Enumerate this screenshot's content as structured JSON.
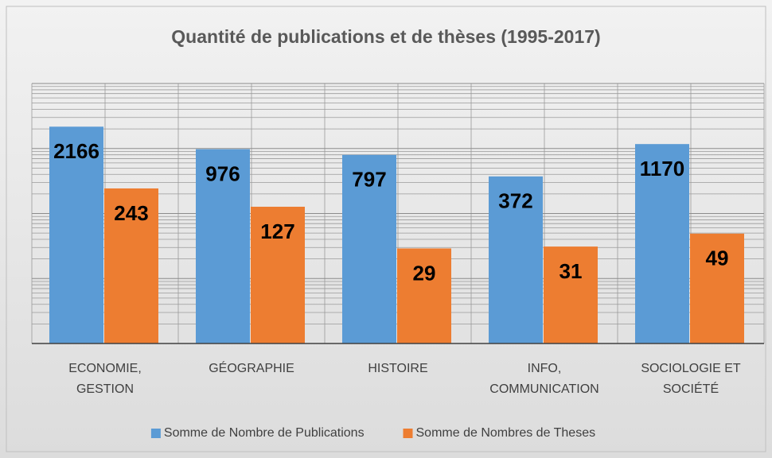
{
  "chart_data": {
    "type": "bar",
    "title": "Quantité de publications et de thèses (1995-2017)",
    "categories": [
      "ECONOMIE, GESTION",
      "GÉOGRAPHIE",
      "HISTOIRE",
      "INFO, COMMUNICATION",
      "SOCIOLOGIE ET SOCIÉTÉ"
    ],
    "series": [
      {
        "name": "Somme de Nombre de Publications",
        "color": "#5b9bd5",
        "values": [
          2166,
          976,
          797,
          372,
          1170
        ]
      },
      {
        "name": "Somme de Nombres de Theses",
        "color": "#ed7d31",
        "values": [
          243,
          127,
          29,
          31,
          49
        ]
      }
    ],
    "ylim": [
      1,
      10000
    ],
    "yticks": [
      1,
      10,
      100,
      1000,
      10000
    ],
    "log_scale": true,
    "grid": true,
    "legend": "bottom"
  }
}
